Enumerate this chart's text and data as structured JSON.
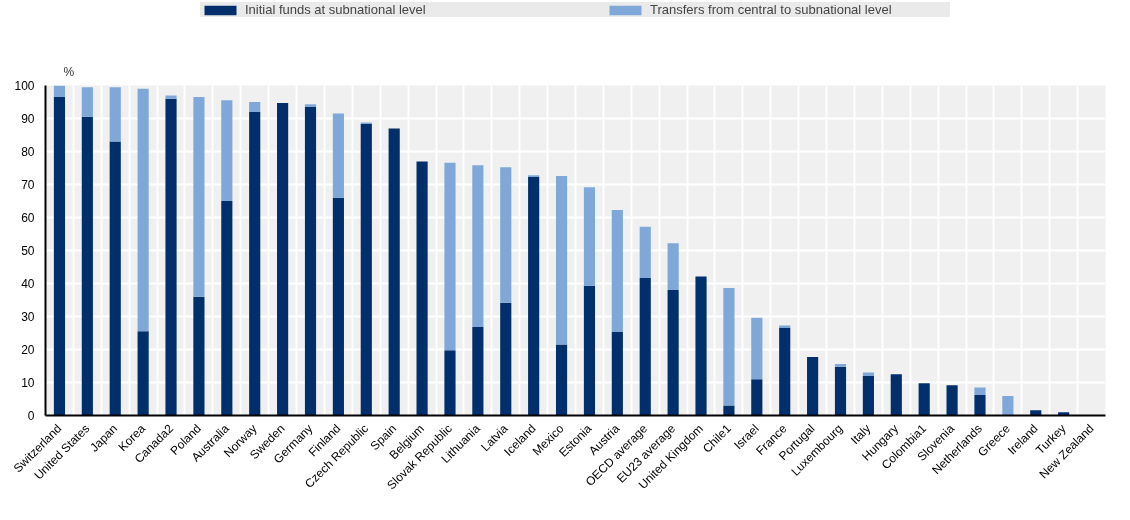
{
  "chart_data": {
    "type": "bar",
    "stacked": true,
    "ylabel": "%",
    "categories": [
      "Switzerland",
      "United States",
      "Japan",
      "Korea",
      "Canada2",
      "Poland",
      "Australia",
      "Norway",
      "Sweden",
      "Germany",
      "Finland",
      "Czech Republic",
      "Spain",
      "Belgium",
      "Slovak Republic",
      "Lithuania",
      "Latvia",
      "Iceland",
      "Mexico",
      "Estonia",
      "Austria",
      "OECD average",
      "EU23 average",
      "United Kingdom",
      "Chile1",
      "Israel",
      "France",
      "Portugal",
      "Luxembourg",
      "Italy",
      "Hungary",
      "Colombia1",
      "Slovenia",
      "Netherlands",
      "Greece",
      "Ireland",
      "Turkey",
      "New Zealand"
    ],
    "series": [
      {
        "name": "Initial funds at subnational level",
        "color": "#002f6c",
        "values": [
          96.5,
          90.5,
          83,
          25.5,
          96,
          36,
          65,
          92,
          94.7,
          93.5,
          66,
          88.3,
          87,
          77,
          19.8,
          26.8,
          34.2,
          72.3,
          21.5,
          39.3,
          25.3,
          41.7,
          38,
          42.1,
          3,
          11,
          26.5,
          17.7,
          14.8,
          12,
          12.5,
          9.8,
          9.2,
          6.2,
          0,
          1.6,
          1,
          0
        ]
      },
      {
        "name": "Transfers from central to subnational level",
        "color": "#7fa8d8",
        "values": [
          3.5,
          9,
          16.5,
          73.5,
          1,
          60.5,
          30.5,
          3,
          0,
          0.8,
          25.5,
          0.5,
          0,
          0,
          56.8,
          49,
          41,
          0.5,
          51.1,
          29.9,
          37,
          15.5,
          14.2,
          0,
          35.6,
          18.6,
          0.8,
          0,
          0.8,
          1,
          0,
          0,
          0,
          2.3,
          5.9,
          0,
          0,
          0
        ]
      }
    ],
    "ylim": [
      0,
      100
    ],
    "yticks": [
      0,
      10,
      20,
      30,
      40,
      50,
      60,
      70,
      80,
      90,
      100
    ],
    "grid": true,
    "legend": "top"
  }
}
